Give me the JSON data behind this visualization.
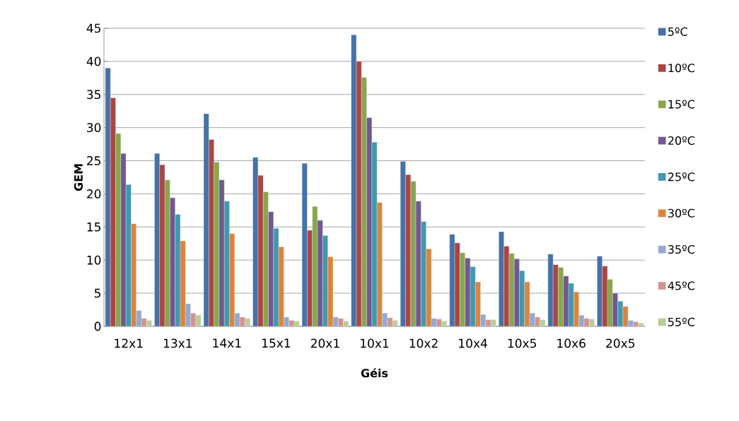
{
  "chart_data": {
    "type": "bar",
    "xlabel": "Géis",
    "ylabel": "GEM",
    "categories": [
      "12x1",
      "13x1",
      "14x1",
      "15x1",
      "20x1",
      "10x1",
      "10x2",
      "10x4",
      "10x5",
      "10x6",
      "20x5"
    ],
    "series": [
      {
        "name": "5ºC",
        "color": "#4572a7",
        "values": [
          39.0,
          26.1,
          32.1,
          25.5,
          24.6,
          44.0,
          24.9,
          13.9,
          14.3,
          10.9,
          10.6
        ]
      },
      {
        "name": "10ºC",
        "color": "#aa4643",
        "values": [
          34.5,
          24.4,
          28.2,
          22.8,
          14.5,
          40.0,
          22.9,
          12.6,
          12.1,
          9.3,
          9.1
        ]
      },
      {
        "name": "15ºC",
        "color": "#89a54e",
        "values": [
          29.1,
          22.1,
          24.8,
          20.3,
          18.1,
          37.6,
          21.9,
          11.1,
          11.0,
          8.9,
          7.1
        ]
      },
      {
        "name": "20ºC",
        "color": "#71588f",
        "values": [
          26.1,
          19.4,
          22.1,
          17.3,
          16.0,
          31.5,
          18.9,
          10.3,
          10.2,
          7.6,
          5.0
        ]
      },
      {
        "name": "25ºC",
        "color": "#4198af",
        "values": [
          21.4,
          16.9,
          18.9,
          14.8,
          13.7,
          27.8,
          15.8,
          9.0,
          8.4,
          6.5,
          3.8
        ]
      },
      {
        "name": "30ºC",
        "color": "#db843d",
        "values": [
          15.5,
          12.9,
          14.0,
          12.0,
          10.5,
          18.7,
          11.7,
          6.7,
          6.7,
          5.2,
          3.0
        ]
      },
      {
        "name": "35ºC",
        "color": "#93a9cf",
        "values": [
          2.4,
          3.4,
          2.0,
          1.4,
          1.4,
          2.0,
          1.2,
          1.8,
          2.0,
          1.7,
          0.9
        ]
      },
      {
        "name": "45ºC",
        "color": "#d19392",
        "values": [
          1.2,
          2.0,
          1.4,
          0.9,
          1.2,
          1.3,
          1.1,
          1.0,
          1.4,
          1.2,
          0.7
        ]
      },
      {
        "name": "55ºC",
        "color": "#b9cd96",
        "values": [
          0.9,
          1.7,
          1.2,
          0.8,
          0.8,
          0.9,
          0.8,
          1.0,
          1.0,
          1.1,
          0.5
        ]
      }
    ],
    "ylim": [
      0,
      45
    ],
    "yticks": [
      0,
      5,
      10,
      15,
      20,
      25,
      30,
      35,
      40,
      45
    ],
    "grid": "y",
    "legend": "right"
  }
}
